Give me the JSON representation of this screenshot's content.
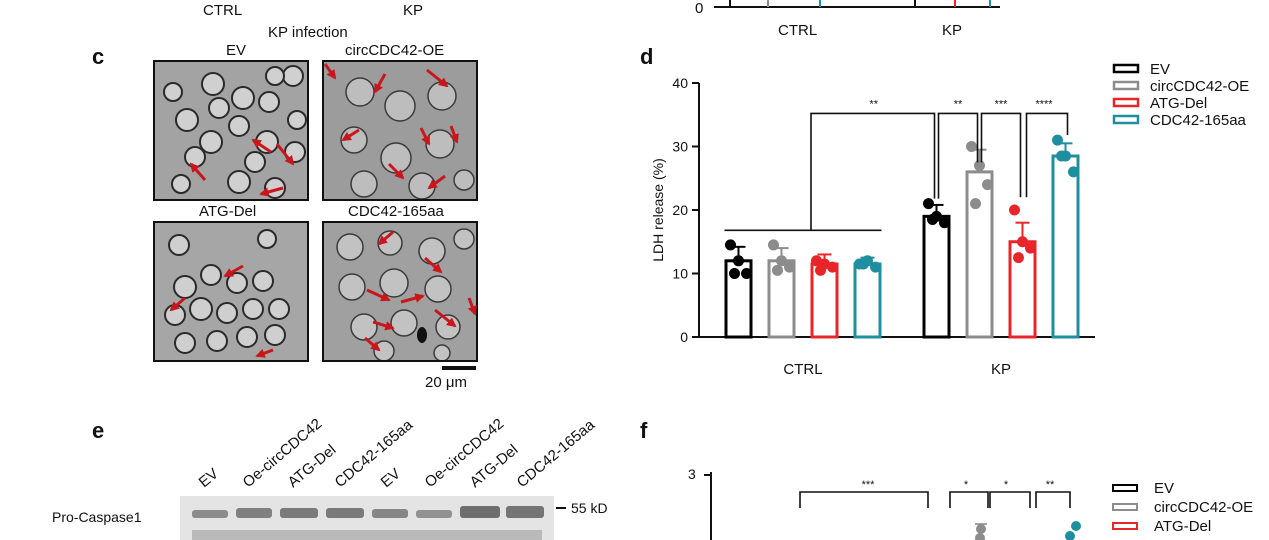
{
  "top_fragment": {
    "left_labels": [
      "CTRL",
      "KP"
    ],
    "right_axis_zero": "0",
    "right_groups": [
      "CTRL",
      "KP"
    ]
  },
  "panel_c": {
    "letter": "c",
    "header": "KP infection",
    "labels": [
      "EV",
      "circCDC42-OE",
      "ATG-Del",
      "CDC42-165aa"
    ],
    "scalebar": "20 μm"
  },
  "panel_d": {
    "letter": "d"
  },
  "panel_e": {
    "letter": "e",
    "lanes": [
      "EV",
      "Oe-circCDC42",
      "ATG-Del",
      "CDC42-165aa",
      "EV",
      "Oe-circCDC42",
      "ATG-Del",
      "CDC42-165aa"
    ],
    "row_label": "Pro-Caspase1",
    "marker": "55 kD"
  },
  "panel_f": {
    "letter": "f",
    "y_top_tick": "3",
    "brackets": [
      "***",
      "*",
      "*",
      "**"
    ],
    "legend": [
      "EV",
      "circCDC42-OE",
      "ATG-Del"
    ]
  },
  "colors": {
    "EV": "#000000",
    "circCDC42-OE": "#8c8c8c",
    "ATG-Del": "#e8262a",
    "CDC42-165aa": "#1f8fa0",
    "arrow": "#c8171c"
  },
  "chart_data": [
    {
      "type": "bar",
      "panel": "d",
      "ylabel": "LDH release (%)",
      "ylim": [
        0,
        40
      ],
      "yticks": [
        0,
        10,
        20,
        30,
        40
      ],
      "categories": [
        "CTRL",
        "KP"
      ],
      "series": [
        {
          "name": "EV",
          "values": [
            12,
            19
          ],
          "err": [
            2.2,
            1.8
          ],
          "points": [
            [
              14.5,
              12,
              10,
              10
            ],
            [
              21,
              19,
              18,
              18.5
            ]
          ]
        },
        {
          "name": "circCDC42-OE",
          "values": [
            12,
            26
          ],
          "err": [
            2,
            3.5
          ],
          "points": [
            [
              14.5,
              12,
              11,
              10.5
            ],
            [
              30,
              27,
              24,
              21
            ]
          ]
        },
        {
          "name": "ATG-Del",
          "values": [
            11.5,
            15
          ],
          "err": [
            1.5,
            3
          ],
          "points": [
            [
              12,
              11.5,
              11,
              10.5
            ],
            [
              20,
              15,
              14,
              12.5
            ]
          ]
        },
        {
          "name": "CDC42-165aa",
          "values": [
            11.5,
            28.5
          ],
          "err": [
            1,
            2
          ],
          "points": [
            [
              11.5,
              12,
              11,
              11.5
            ],
            [
              31,
              28.5,
              26,
              28.5
            ]
          ]
        }
      ],
      "significance": [
        "**",
        "**",
        "***",
        "****"
      ]
    }
  ]
}
